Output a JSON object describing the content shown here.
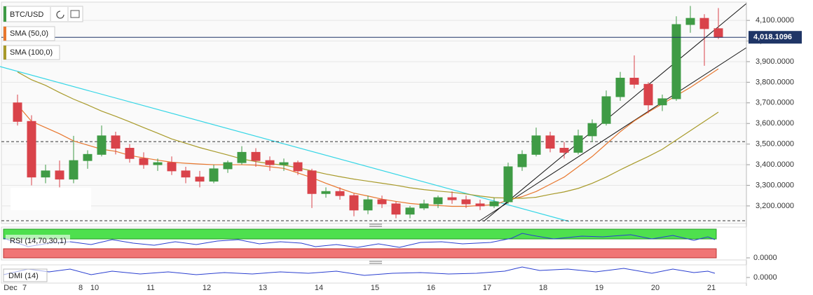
{
  "chart_data": {
    "type": "candlestick",
    "categories": [
      "Dec",
      "7",
      null,
      null,
      null,
      "8",
      "10",
      null,
      null,
      null,
      "11",
      null,
      null,
      null,
      "12",
      null,
      null,
      null,
      "13",
      null,
      null,
      null,
      "14",
      null,
      null,
      null,
      "15",
      null,
      null,
      null,
      "16",
      null,
      null,
      null,
      "17",
      null,
      null,
      null,
      "18",
      null,
      null,
      null,
      "19",
      null,
      null,
      null,
      "20",
      null,
      null,
      null,
      "21"
    ],
    "series": [
      {
        "name": "BTC/USD",
        "up_color": "#3f9b45",
        "down_color": "#d9434a",
        "open": [
          3700,
          3610,
          3340,
          3370,
          3330,
          3420,
          3450,
          3540,
          3480,
          3430,
          3400,
          3410,
          3370,
          3340,
          3320,
          3380,
          3410,
          3460,
          3420,
          3400,
          3410,
          3370,
          3260,
          3270,
          3250,
          3180,
          3230,
          3210,
          3160,
          3190,
          3210,
          3240,
          3230,
          3210,
          3200,
          3220,
          3390,
          3450,
          3540,
          3480,
          3460,
          3540,
          3600,
          3730,
          3820,
          3790,
          3690,
          3720,
          4080,
          4110,
          4060
        ],
        "high": [
          3740,
          3640,
          3400,
          3420,
          3540,
          3470,
          3590,
          3560,
          3500,
          3460,
          3430,
          3440,
          3390,
          3370,
          3400,
          3420,
          3490,
          3480,
          3440,
          3430,
          3420,
          3380,
          3290,
          3290,
          3260,
          3250,
          3250,
          3220,
          3200,
          3230,
          3250,
          3270,
          3250,
          3230,
          3240,
          3410,
          3470,
          3580,
          3560,
          3510,
          3570,
          3620,
          3760,
          3850,
          3930,
          3800,
          3740,
          4120,
          4170,
          4130,
          4160
        ],
        "low": [
          3590,
          3300,
          3310,
          3290,
          3310,
          3380,
          3440,
          3450,
          3410,
          3380,
          3370,
          3350,
          3310,
          3290,
          3310,
          3360,
          3400,
          3390,
          3370,
          3370,
          3350,
          3190,
          3240,
          3230,
          3150,
          3160,
          3190,
          3140,
          3140,
          3180,
          3190,
          3210,
          3190,
          3180,
          3190,
          3210,
          3370,
          3440,
          3460,
          3430,
          3450,
          3510,
          3590,
          3710,
          3770,
          3650,
          3660,
          3710,
          4040,
          3880,
          4010
        ],
        "close": [
          3610,
          3340,
          3370,
          3330,
          3420,
          3450,
          3540,
          3480,
          3430,
          3400,
          3410,
          3370,
          3340,
          3320,
          3380,
          3410,
          3460,
          3420,
          3400,
          3410,
          3370,
          3260,
          3270,
          3250,
          3180,
          3230,
          3210,
          3160,
          3190,
          3210,
          3240,
          3230,
          3210,
          3200,
          3220,
          3390,
          3450,
          3540,
          3480,
          3460,
          3540,
          3600,
          3730,
          3820,
          3790,
          3690,
          3720,
          4080,
          4110,
          4060,
          4018.1096
        ]
      }
    ],
    "overlays": [
      {
        "name": "SMA (50,0)",
        "color": "#e8772e",
        "values": [
          3690,
          3610,
          3580,
          3550,
          3515,
          3495,
          3475,
          3465,
          3445,
          3433,
          3422,
          3412,
          3407,
          3403,
          3400,
          3400,
          3400,
          3398,
          3390,
          3382,
          3360,
          3337,
          3310,
          3285,
          3262,
          3248,
          3233,
          3222,
          3212,
          3206,
          3202,
          3198,
          3198,
          3202,
          3206,
          3228,
          3245,
          3270,
          3305,
          3340,
          3390,
          3440,
          3500,
          3560,
          3612,
          3655,
          3695,
          3735,
          3775,
          3820,
          3865
        ]
      },
      {
        "name": "SMA (100,0)",
        "color": "#a89a2a",
        "values": [
          3850,
          3812,
          3785,
          3750,
          3718,
          3690,
          3660,
          3635,
          3608,
          3580,
          3553,
          3525,
          3504,
          3483,
          3465,
          3447,
          3428,
          3415,
          3405,
          3398,
          3385,
          3370,
          3355,
          3342,
          3330,
          3320,
          3310,
          3300,
          3288,
          3279,
          3272,
          3266,
          3258,
          3248,
          3240,
          3238,
          3237,
          3242,
          3256,
          3268,
          3285,
          3310,
          3340,
          3375,
          3408,
          3440,
          3475,
          3520,
          3565,
          3610,
          3655
        ]
      }
    ],
    "ylim": [
      3118,
      4182
    ],
    "yticks": [
      {
        "value": 3200,
        "label": "3,200.0000"
      },
      {
        "value": 3300,
        "label": "3,300.0000"
      },
      {
        "value": 3400,
        "label": "3,400.0000"
      },
      {
        "value": 3500,
        "label": "3,500.0000"
      },
      {
        "value": 3600,
        "label": "3,600.0000"
      },
      {
        "value": 3700,
        "label": "3,700.0000"
      },
      {
        "value": 3800,
        "label": "3,800.0000"
      },
      {
        "value": 3900,
        "label": "3,900.0000"
      },
      {
        "value": 4000,
        "label": "4,000.0000"
      },
      {
        "value": 4100,
        "label": "4,100.0000"
      }
    ],
    "grid": true,
    "last_price": {
      "value": 4018.1096,
      "label": "4,018.1096",
      "color": "#1f3566"
    },
    "levels": [
      3512,
      3128
    ],
    "indicators": [
      {
        "name": "RSI (14,70,30,1)",
        "tick": {
          "value": 0,
          "label": "0.0000"
        }
      },
      {
        "name": "DMI (14)",
        "tick": {
          "value": 0,
          "label": "0.0000"
        }
      }
    ]
  }
}
